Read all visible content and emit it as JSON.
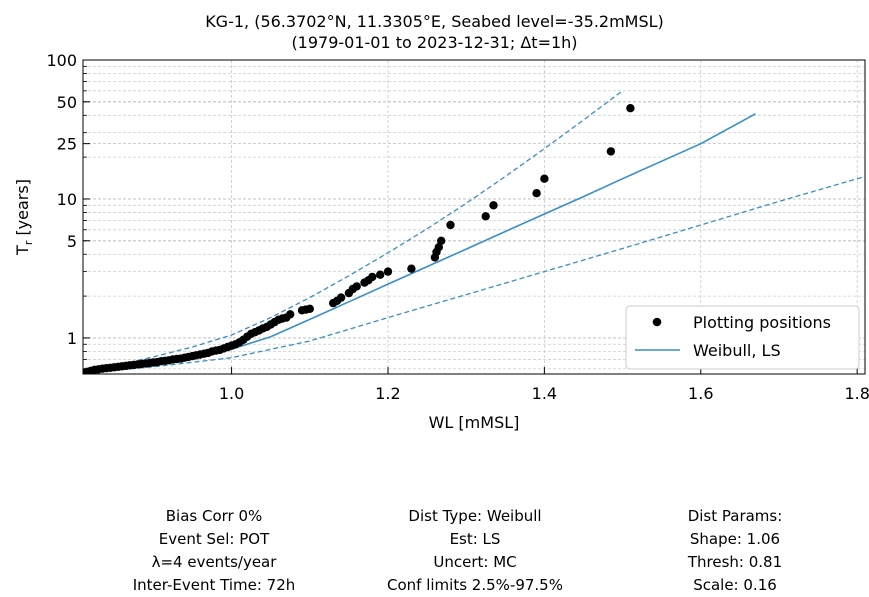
{
  "chart_data": {
    "type": "scatter",
    "title": "KG-1, (56.3702°N, 11.3305°E, Seabed level=-35.2mMSL)",
    "subtitle": "(1979-01-01 to 2023-12-31; Δt=1h)",
    "xlabel": "WL  [mMSL]",
    "ylabel": "T",
    "ylabel_sub": "r",
    "ylabel_unit": " [years]",
    "xlim": [
      0.81,
      1.81
    ],
    "ylim": [
      0.55,
      100
    ],
    "yscale": "log",
    "x_ticks": [
      1.0,
      1.2,
      1.4,
      1.6,
      1.8
    ],
    "x_tick_labels": [
      "1.0",
      "1.2",
      "1.4",
      "1.6",
      "1.8"
    ],
    "y_ticks": [
      1,
      5,
      10,
      25,
      50,
      100
    ],
    "y_tick_labels": [
      "1",
      "5",
      "10",
      "25",
      "50",
      "100"
    ],
    "grid": true,
    "legend": {
      "location": "bottom-right",
      "entries": [
        {
          "label": "Plotting positions",
          "marker": "dot",
          "color": "#000000"
        },
        {
          "label": "Weibull, LS",
          "marker": "line",
          "color": "#3a8ec6"
        }
      ]
    },
    "series": [
      {
        "name": "Plotting positions",
        "kind": "points",
        "color": "#000000",
        "x": [
          0.815,
          0.82,
          0.825,
          0.83,
          0.835,
          0.84,
          0.845,
          0.85,
          0.855,
          0.86,
          0.865,
          0.87,
          0.875,
          0.88,
          0.885,
          0.89,
          0.895,
          0.9,
          0.905,
          0.91,
          0.915,
          0.92,
          0.925,
          0.93,
          0.935,
          0.94,
          0.945,
          0.95,
          0.955,
          0.96,
          0.965,
          0.97,
          0.975,
          0.98,
          0.985,
          0.99,
          0.995,
          1.0,
          1.005,
          1.01,
          1.015,
          1.02,
          1.025,
          1.03,
          1.035,
          1.04,
          1.045,
          1.05,
          1.055,
          1.06,
          1.065,
          1.07,
          1.075,
          1.09,
          1.095,
          1.1,
          1.13,
          1.135,
          1.14,
          1.15,
          1.155,
          1.16,
          1.17,
          1.175,
          1.18,
          1.19,
          1.2,
          1.23,
          1.26,
          1.262,
          1.265,
          1.268,
          1.28,
          1.325,
          1.335,
          1.39,
          1.4,
          1.485,
          1.51
        ],
        "y": [
          0.57,
          0.58,
          0.59,
          0.595,
          0.6,
          0.605,
          0.61,
          0.615,
          0.62,
          0.625,
          0.63,
          0.635,
          0.64,
          0.645,
          0.65,
          0.655,
          0.66,
          0.665,
          0.67,
          0.68,
          0.685,
          0.69,
          0.7,
          0.705,
          0.71,
          0.72,
          0.73,
          0.74,
          0.75,
          0.76,
          0.77,
          0.78,
          0.8,
          0.81,
          0.82,
          0.84,
          0.86,
          0.88,
          0.9,
          0.93,
          0.97,
          1.02,
          1.07,
          1.1,
          1.13,
          1.17,
          1.2,
          1.25,
          1.3,
          1.35,
          1.38,
          1.4,
          1.48,
          1.58,
          1.6,
          1.62,
          1.78,
          1.85,
          1.95,
          2.1,
          2.25,
          2.35,
          2.5,
          2.6,
          2.75,
          2.85,
          3.0,
          3.15,
          3.8,
          4.15,
          4.5,
          5.0,
          6.5,
          7.5,
          9.0,
          11.0,
          14.0,
          22.0,
          45.0
        ]
      },
      {
        "name": "Weibull, LS",
        "kind": "line",
        "style": "solid",
        "color": "#3a8ec6",
        "x": [
          0.81,
          0.85,
          0.9,
          0.95,
          1.0,
          1.05,
          1.1,
          1.15,
          1.2,
          1.25,
          1.3,
          1.35,
          1.4,
          1.45,
          1.5,
          1.55,
          1.6,
          1.67
        ],
        "y": [
          0.56,
          0.61,
          0.66,
          0.73,
          0.83,
          1.02,
          1.36,
          1.82,
          2.44,
          3.26,
          4.36,
          5.83,
          7.8,
          10.4,
          14.0,
          18.7,
          25.0,
          41.0
        ]
      },
      {
        "kind": "line",
        "style": "dashed",
        "color": "#3a8ec6",
        "x": [
          0.81,
          0.85,
          0.9,
          0.95,
          1.0,
          1.05,
          1.1,
          1.15,
          1.2,
          1.25,
          1.3,
          1.35,
          1.4,
          1.45,
          1.5
        ],
        "y": [
          0.57,
          0.63,
          0.73,
          0.86,
          1.05,
          1.4,
          1.95,
          2.8,
          4.1,
          6.1,
          9.3,
          14.5,
          23.0,
          37.0,
          60.0
        ]
      },
      {
        "kind": "line",
        "style": "dashed",
        "color": "#3a8ec6",
        "x": [
          0.81,
          0.9,
          1.0,
          1.1,
          1.2,
          1.3,
          1.4,
          1.5,
          1.6,
          1.7,
          1.81
        ],
        "y": [
          0.56,
          0.62,
          0.72,
          0.95,
          1.4,
          2.05,
          3.0,
          4.4,
          6.5,
          9.6,
          14.5
        ]
      }
    ]
  },
  "info": {
    "left": [
      "Bias Corr 0%",
      "Event Sel: POT",
      "λ=4 events/year",
      "Inter-Event Time: 72h"
    ],
    "middle": [
      "Dist Type: Weibull",
      "Est: LS",
      "Uncert: MC",
      "Conf limits 2.5%-97.5%"
    ],
    "right": [
      "Dist Params:",
      "Shape: 1.06",
      "Thresh: 0.81",
      "Scale: 0.16"
    ]
  }
}
